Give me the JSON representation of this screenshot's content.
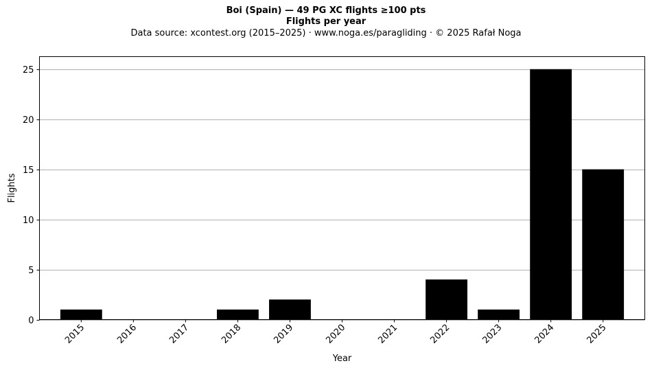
{
  "header": {
    "title": "Boi (Spain)  —  49 PG XC flights ≥100 pts",
    "subtitle": "Flights per year",
    "source": "Data source: xcontest.org (2015–2025)  ·  www.noga.es/paragliding  ·  © 2025 Rafał Noga"
  },
  "chart_data": {
    "type": "bar",
    "title": "Boi (Spain)  —  49 PG XC flights ≥100 pts",
    "subtitle": "Flights per year",
    "xlabel": "Year",
    "ylabel": "Flights",
    "categories": [
      "2015",
      "2016",
      "2017",
      "2018",
      "2019",
      "2020",
      "2021",
      "2022",
      "2023",
      "2024",
      "2025"
    ],
    "values": [
      1,
      0,
      0,
      1,
      2,
      0,
      0,
      4,
      1,
      25,
      15
    ],
    "ylim": [
      0,
      26.25
    ],
    "yticks": [
      0,
      5,
      10,
      15,
      20,
      25
    ],
    "grid": "y",
    "bar_color": "#000000",
    "grid_color": "#b0b0b0"
  }
}
